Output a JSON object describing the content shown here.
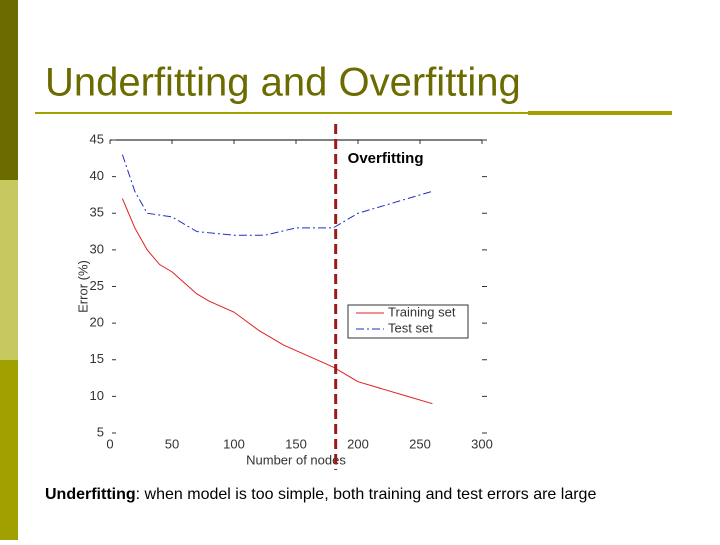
{
  "slide": {
    "title": "Underfitting and Overfitting",
    "caption_bold": "Underfitting",
    "caption_rest": ": when model is too simple, both training and test errors are large"
  },
  "chart_data": {
    "type": "line",
    "xlabel": "Number of nodes",
    "ylabel": "Error (%)",
    "xlim": [
      0,
      300
    ],
    "ylim": [
      5,
      45
    ],
    "xticks": [
      0,
      50,
      100,
      150,
      200,
      250,
      300
    ],
    "yticks": [
      5,
      10,
      15,
      20,
      25,
      30,
      35,
      40,
      45
    ],
    "legend": "lower right",
    "annotation": {
      "text": "Overfitting",
      "x": 182,
      "color": "#9b1b1b"
    },
    "series": [
      {
        "name": "Training set",
        "color": "#e02020",
        "dash": "solid",
        "x": [
          10,
          20,
          30,
          40,
          50,
          60,
          70,
          80,
          100,
          120,
          140,
          160,
          180,
          200,
          220,
          240,
          260
        ],
        "values": [
          37,
          33,
          30,
          28,
          27,
          25.5,
          24,
          23,
          21.5,
          19,
          17,
          15.5,
          14,
          12,
          11,
          10,
          9
        ]
      },
      {
        "name": "Test set",
        "color": "#2030c0",
        "dash": "dashdot",
        "x": [
          10,
          20,
          30,
          50,
          70,
          100,
          125,
          150,
          170,
          180,
          200,
          220,
          240,
          260
        ],
        "values": [
          43,
          38,
          35,
          34.5,
          32.5,
          32,
          32,
          33,
          33,
          33,
          35,
          36,
          37,
          38
        ]
      }
    ]
  }
}
